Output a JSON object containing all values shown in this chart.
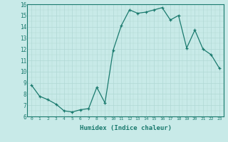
{
  "x": [
    0,
    1,
    2,
    3,
    4,
    5,
    6,
    7,
    8,
    9,
    10,
    11,
    12,
    13,
    14,
    15,
    16,
    17,
    18,
    19,
    20,
    21,
    22,
    23
  ],
  "y": [
    8.8,
    7.8,
    7.5,
    7.1,
    6.5,
    6.4,
    6.6,
    6.7,
    8.6,
    7.2,
    11.9,
    14.1,
    15.5,
    15.2,
    15.3,
    15.5,
    15.7,
    14.6,
    15.0,
    12.1,
    13.7,
    12.0,
    11.5,
    10.3
  ],
  "xlabel": "Humidex (Indice chaleur)",
  "ylim": [
    6,
    16
  ],
  "xlim": [
    -0.5,
    23.5
  ],
  "yticks": [
    6,
    7,
    8,
    9,
    10,
    11,
    12,
    13,
    14,
    15,
    16
  ],
  "xticks": [
    0,
    1,
    2,
    3,
    4,
    5,
    6,
    7,
    8,
    9,
    10,
    11,
    12,
    13,
    14,
    15,
    16,
    17,
    18,
    19,
    20,
    21,
    22,
    23
  ],
  "line_color": "#1a7a6e",
  "marker_color": "#1a7a6e",
  "bg_color": "#c8eae8",
  "grid_color": "#b0d8d4",
  "label_color": "#1a7a6e",
  "tick_color": "#1a7a6e",
  "spine_color": "#1a7a6e"
}
